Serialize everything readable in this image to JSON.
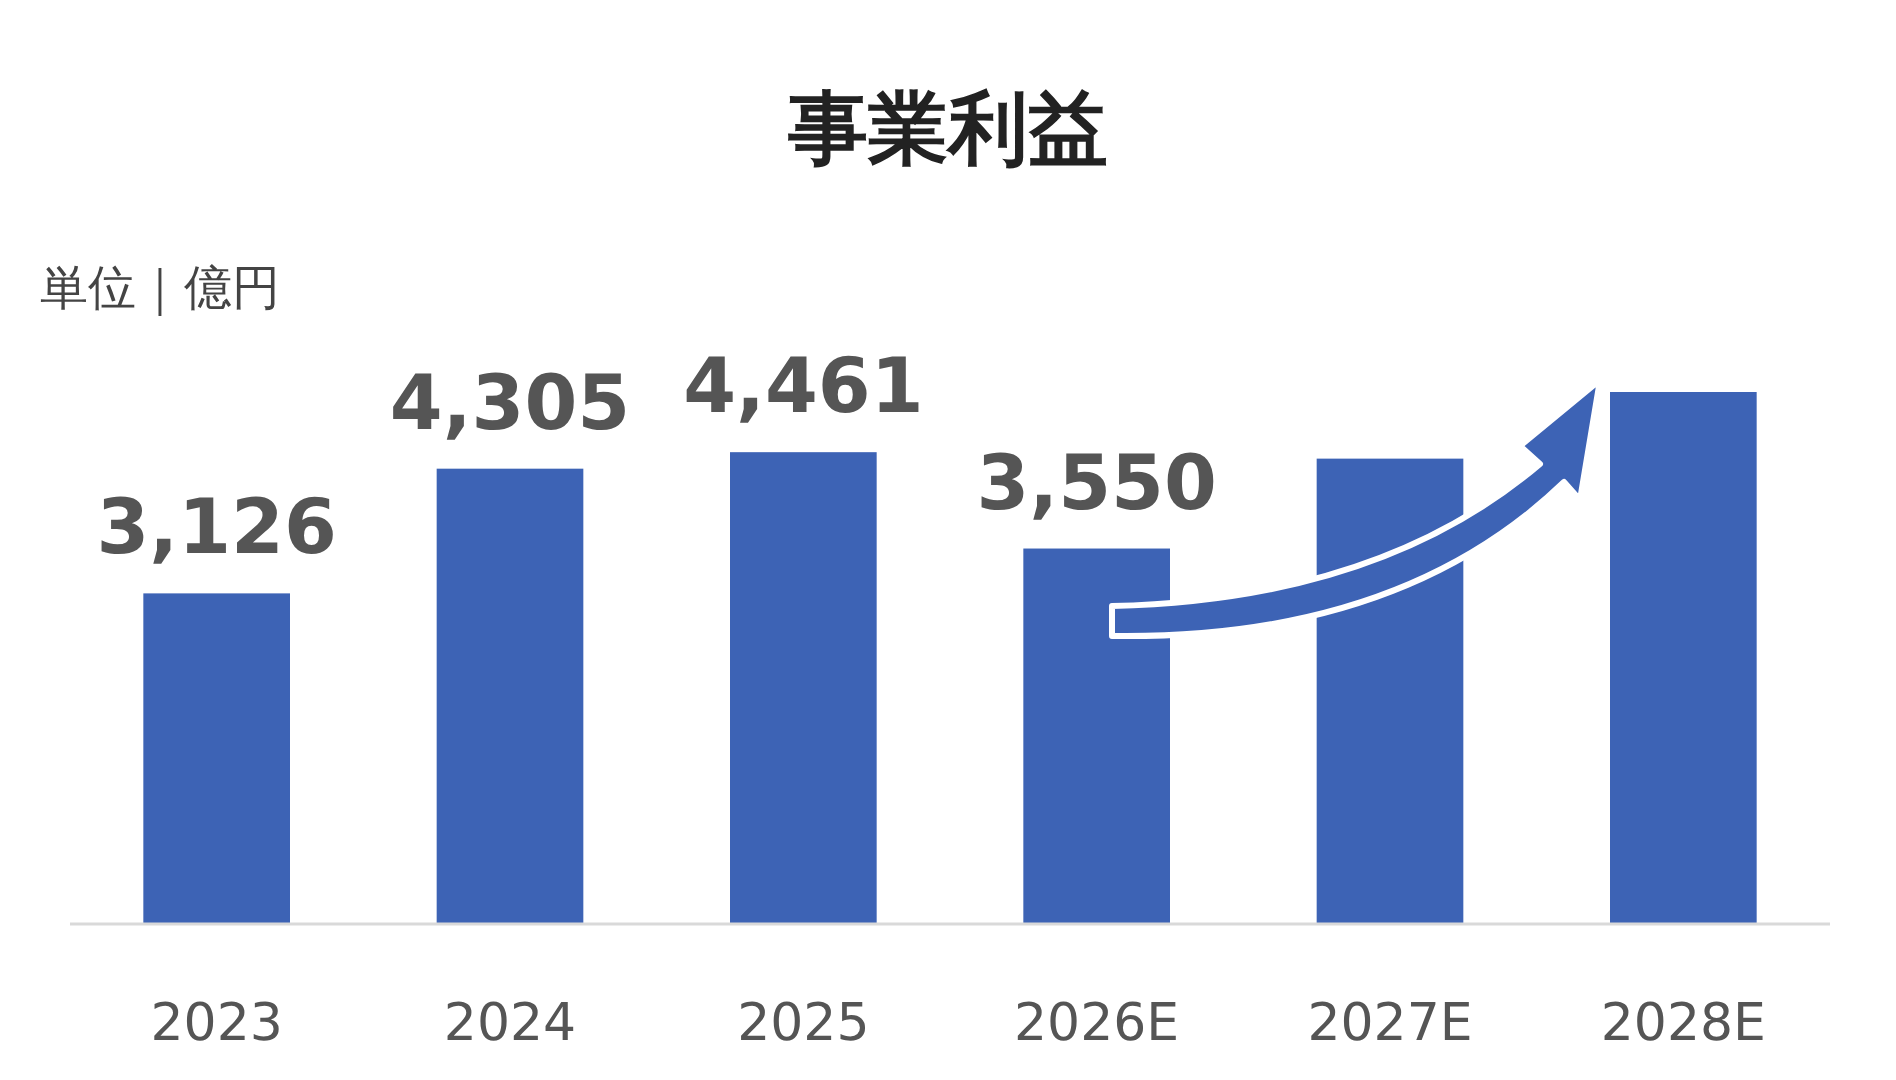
{
  "chart_data": {
    "type": "bar",
    "title": "事業利益",
    "ylabel": "単位｜億円",
    "categories": [
      "2023",
      "2024",
      "2025",
      "2026E",
      "2027E",
      "2028E"
    ],
    "values": [
      3126,
      4305,
      4461,
      3550,
      4400,
      5030
    ],
    "value_labels": [
      "3,126",
      "4,305",
      "4,461",
      "3,550",
      null,
      null
    ],
    "colors": [
      "#3d63b5",
      "#3d63b5",
      "#3d63b5",
      "#3d63b5",
      "#3d63b5",
      "#3d63b5"
    ]
  }
}
